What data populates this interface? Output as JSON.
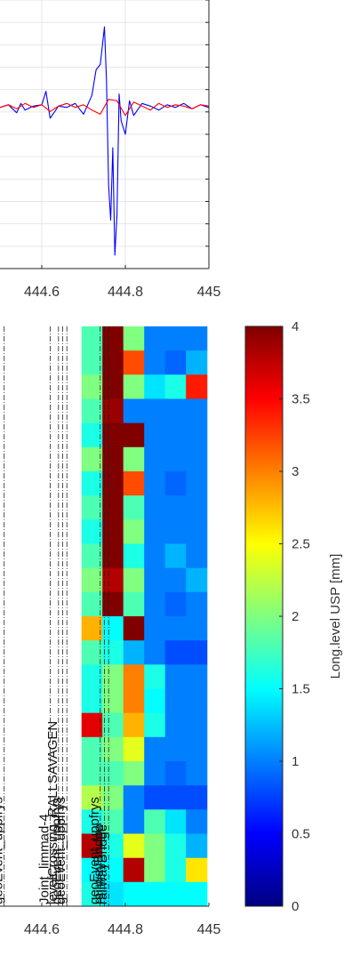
{
  "chart_data": [
    {
      "type": "line",
      "title": "",
      "xlabel": "",
      "ylabel": "",
      "xlim": [
        444.5,
        445.0
      ],
      "grid": true,
      "x_ticks": [
        "444.6",
        "444.8",
        "445"
      ],
      "series": [
        {
          "color": "#0000ff",
          "x": [
            444.5,
            444.52,
            444.54,
            444.55,
            444.56,
            444.58,
            444.6,
            444.61,
            444.62,
            444.64,
            444.66,
            444.68,
            444.7,
            444.72,
            444.73,
            444.74,
            444.75,
            444.755,
            444.76,
            444.765,
            444.77,
            444.775,
            444.78,
            444.785,
            444.79,
            444.8,
            444.81,
            444.82,
            444.84,
            444.86,
            444.88,
            444.9,
            444.92,
            444.94,
            444.96,
            444.98,
            445.0
          ],
          "y": [
            0.0,
            0.2,
            -0.4,
            0.3,
            -0.2,
            0.1,
            0.2,
            1.2,
            -0.8,
            0.1,
            0.0,
            0.3,
            -0.5,
            0.9,
            2.8,
            3.2,
            6.0,
            2.0,
            -5.8,
            -8.4,
            -3.0,
            -11.0,
            -8.0,
            1.0,
            -1.0,
            -2.0,
            0.5,
            -0.6,
            0.3,
            0.1,
            -0.2,
            0.2,
            0.0,
            0.3,
            -0.1,
            0.2,
            0.0
          ]
        },
        {
          "color": "#ff0000",
          "x": [
            444.5,
            444.52,
            444.54,
            444.56,
            444.58,
            444.6,
            444.62,
            444.64,
            444.66,
            444.68,
            444.7,
            444.72,
            444.74,
            444.76,
            444.78,
            444.8,
            444.82,
            444.84,
            444.86,
            444.88,
            444.9,
            444.92,
            444.94,
            444.96,
            444.98,
            445.0
          ],
          "y": [
            0.0,
            0.2,
            -0.1,
            0.3,
            0.0,
            0.2,
            -0.3,
            0.1,
            0.3,
            0.0,
            0.2,
            -0.2,
            -0.5,
            0.6,
            0.5,
            -0.6,
            0.4,
            0.1,
            -0.2,
            0.3,
            0.0,
            0.2,
            0.1,
            -0.1,
            0.2,
            0.1
          ]
        }
      ]
    },
    {
      "type": "heatmap",
      "title": "",
      "xlim": [
        444.5,
        445.0
      ],
      "x_ticks": [
        "444.6",
        "444.8",
        "445"
      ],
      "colorbar": {
        "label": "Long.level USP [mm]",
        "range": [
          0,
          4
        ],
        "ticks": [
          "0",
          "0.5",
          "1",
          "1.5",
          "2",
          "2.5",
          "3",
          "3.5",
          "4"
        ]
      },
      "column_x": [
        444.72,
        444.77,
        444.82,
        444.87,
        444.92,
        444.97
      ],
      "rows": [
        [
          1.8,
          4.0,
          2.0,
          1.0,
          1.0,
          1.0
        ],
        [
          1.8,
          4.0,
          3.2,
          1.0,
          0.9,
          1.2
        ],
        [
          2.0,
          4.0,
          2.0,
          1.4,
          1.6,
          3.4
        ],
        [
          1.8,
          3.9,
          1.0,
          1.0,
          1.0,
          1.0
        ],
        [
          1.6,
          4.0,
          4.0,
          1.0,
          1.0,
          1.0
        ],
        [
          2.0,
          4.0,
          2.0,
          1.0,
          1.0,
          1.0
        ],
        [
          1.6,
          4.0,
          3.2,
          1.0,
          0.9,
          1.0
        ],
        [
          1.8,
          4.0,
          1.8,
          1.0,
          1.0,
          1.0
        ],
        [
          1.6,
          4.0,
          2.0,
          1.0,
          1.0,
          1.0
        ],
        [
          1.8,
          4.0,
          1.6,
          1.0,
          1.2,
          1.0
        ],
        [
          2.0,
          3.8,
          2.0,
          1.0,
          1.0,
          1.2
        ],
        [
          1.8,
          4.0,
          1.8,
          1.0,
          0.9,
          1.0
        ],
        [
          2.8,
          1.5,
          4.0,
          1.0,
          1.0,
          1.0
        ],
        [
          1.8,
          1.6,
          1.2,
          1.0,
          0.8,
          0.8
        ],
        [
          1.6,
          2.0,
          3.0,
          1.6,
          1.0,
          1.0
        ],
        [
          1.6,
          2.0,
          3.0,
          1.5,
          1.0,
          1.0
        ],
        [
          3.6,
          1.8,
          2.8,
          1.6,
          1.0,
          1.0
        ],
        [
          1.8,
          2.0,
          2.4,
          1.0,
          1.0,
          1.0
        ],
        [
          1.8,
          1.8,
          2.0,
          1.0,
          0.9,
          1.0
        ],
        [
          2.2,
          2.0,
          1.0,
          0.8,
          0.8,
          0.8
        ],
        [
          1.6,
          1.8,
          1.0,
          1.8,
          1.4,
          1.0
        ],
        [
          3.8,
          1.6,
          2.4,
          2.0,
          1.6,
          1.2
        ],
        [
          1.5,
          1.5,
          3.8,
          2.0,
          1.6,
          2.6
        ],
        [
          1.6,
          1.4,
          1.5,
          1.5,
          1.5,
          1.5
        ]
      ],
      "annotations": [
        {
          "x": 444.51,
          "text": "geoEvent_uppfrys"
        },
        {
          "x": 444.62,
          "text": "Joint_limmad-4"
        },
        {
          "x": 444.64,
          "text": "levelCrossing_RALLSAVAGEN"
        },
        {
          "x": 444.65,
          "text": "geoEvent_uppfrys"
        },
        {
          "x": 444.66,
          "text": "geoEvent_uppfrys"
        },
        {
          "x": 444.74,
          "text": "geoEvent_uppfrys"
        },
        {
          "x": 444.75,
          "text": "railwayBridge"
        },
        {
          "x": 444.76,
          "text": "railwayBridge"
        }
      ]
    }
  ]
}
